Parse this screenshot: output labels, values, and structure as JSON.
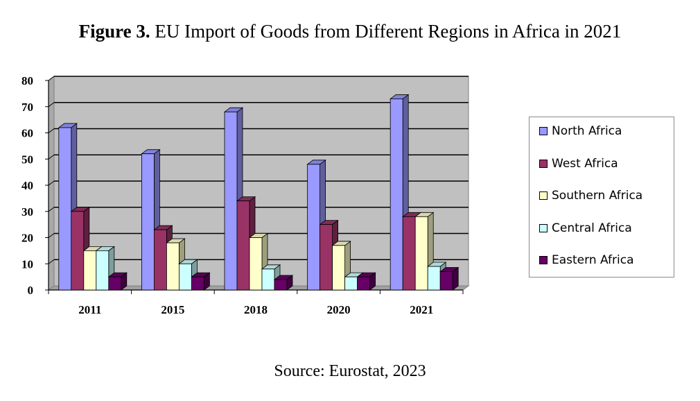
{
  "figure": {
    "label": "Figure 3.",
    "title": "EU Import of Goods from Different Regions in Africa in 2021",
    "source": "Source: Eurostat, 2023"
  },
  "chart_data": {
    "type": "bar",
    "title": "EU Import of Goods from Different Regions in Africa in 2021",
    "xlabel": "",
    "ylabel": "",
    "ylim": [
      0,
      80
    ],
    "yticks": [
      "0",
      "10",
      "20",
      "30",
      "40",
      "50",
      "60",
      "70",
      "80"
    ],
    "grid": true,
    "legend_position": "right",
    "categories": [
      "2011",
      "2015",
      "2018",
      "2020",
      "2021"
    ],
    "series": [
      {
        "name": "North Africa",
        "color": "#9999ff",
        "values": [
          62,
          52,
          68,
          48,
          73
        ]
      },
      {
        "name": "West Africa",
        "color": "#993366",
        "values": [
          30,
          23,
          34,
          25,
          28
        ]
      },
      {
        "name": "Southern Africa",
        "color": "#ffffcc",
        "values": [
          15,
          18,
          20,
          17,
          28
        ]
      },
      {
        "name": "Central Africa",
        "color": "#ccffff",
        "values": [
          15,
          10,
          8,
          5,
          9
        ]
      },
      {
        "name": "Eastern Africa",
        "color": "#660066",
        "values": [
          5,
          5,
          4,
          5,
          7
        ]
      }
    ]
  }
}
